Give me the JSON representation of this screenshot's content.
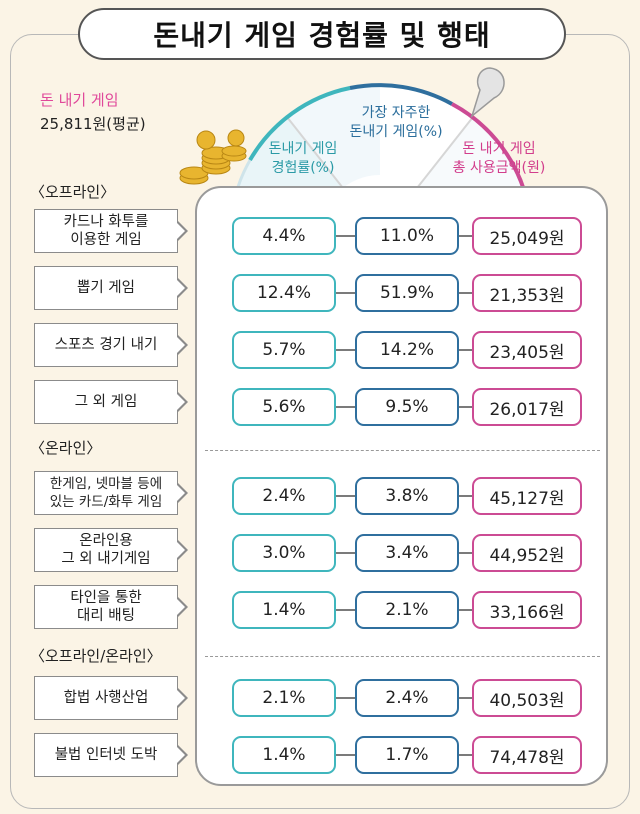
{
  "title": "돈내기 게임 경험률 및 행태",
  "average": {
    "label": "돈 내기 게임",
    "value": "25,811원(평균)"
  },
  "columns": [
    "돈내기 게임\n경험률(%)",
    "가장 자주한\n돈내기 게임(%)",
    "돈 내기 게임\n총 사용금액(원)"
  ],
  "colors": {
    "col1": "#3fb6bd",
    "col2": "#2f6f9e",
    "col3": "#cc4b94",
    "label_pink": "#e0489a"
  },
  "sections": [
    {
      "label": "〈오프라인〉",
      "rows": [
        {
          "name": "카드나 화투를\n이용한 게임",
          "rate": "4.4%",
          "frequent": "11.0%",
          "amount": "25,049원"
        },
        {
          "name": "뽑기 게임",
          "rate": "12.4%",
          "frequent": "51.9%",
          "amount": "21,353원"
        },
        {
          "name": "스포츠 경기 내기",
          "rate": "5.7%",
          "frequent": "14.2%",
          "amount": "23,405원"
        },
        {
          "name": "그 외 게임",
          "rate": "5.6%",
          "frequent": "9.5%",
          "amount": "26,017원"
        }
      ]
    },
    {
      "label": "〈온라인〉",
      "rows": [
        {
          "name": "한게임, 넷마블 등에\n있는 카드/화투 게임",
          "rate": "2.4%",
          "frequent": "3.8%",
          "amount": "45,127원"
        },
        {
          "name": "온라인용\n그 외 내기게임",
          "rate": "3.0%",
          "frequent": "3.4%",
          "amount": "44,952원"
        },
        {
          "name": "타인을 통한\n대리 배팅",
          "rate": "1.4%",
          "frequent": "2.1%",
          "amount": "33,166원"
        }
      ]
    },
    {
      "label": "〈오프라인/온라인〉",
      "rows": [
        {
          "name": "합법 사행산업",
          "rate": "2.1%",
          "frequent": "2.4%",
          "amount": "40,503원"
        },
        {
          "name": "불법 인터넷 도박",
          "rate": "1.4%",
          "frequent": "1.7%",
          "amount": "74,478원"
        }
      ]
    }
  ]
}
